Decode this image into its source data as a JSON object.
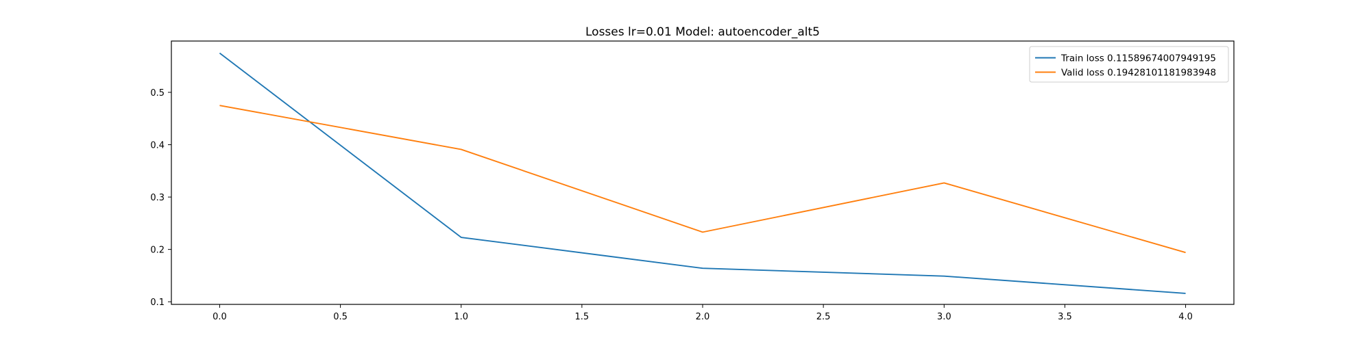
{
  "chart_data": {
    "type": "line",
    "title": "Losses lr=0.01 Model: autoencoder_alt5",
    "xlabel": "",
    "ylabel": "",
    "x": [
      0,
      1,
      2,
      3,
      4
    ],
    "xlim": [
      -0.2,
      4.2
    ],
    "ylim": [
      0.095,
      0.598
    ],
    "xticks": [
      "0.0",
      "0.5",
      "1.0",
      "1.5",
      "2.0",
      "2.5",
      "3.0",
      "3.5",
      "4.0"
    ],
    "yticks": [
      "0.1",
      "0.2",
      "0.3",
      "0.4",
      "0.5"
    ],
    "grid": false,
    "legend_position": "top-right",
    "series": [
      {
        "name": "Train loss 0.11589674007949195",
        "color": "#1f77b4",
        "values": [
          0.575,
          0.223,
          0.164,
          0.149,
          0.116
        ]
      },
      {
        "name": "Valid loss 0.19428101181983948",
        "color": "#ff7f0e",
        "values": [
          0.475,
          0.391,
          0.233,
          0.327,
          0.194
        ]
      }
    ]
  }
}
